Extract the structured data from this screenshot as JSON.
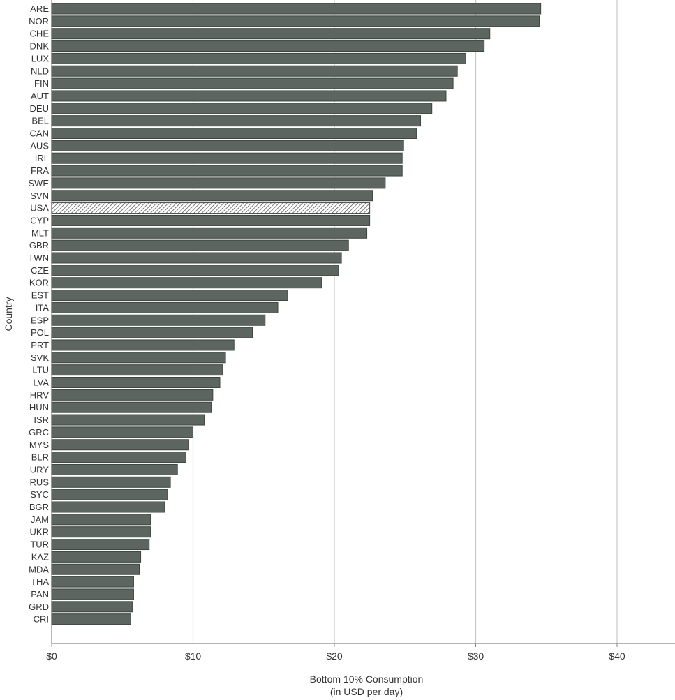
{
  "colors": {
    "bar": "#5c655f",
    "bar_stroke": "#3f4541",
    "highlight_hatch": "#444444",
    "grid": "#c8c8c8",
    "axis": "#888888"
  },
  "chart_data": {
    "type": "bar",
    "orientation": "horizontal",
    "xlabel_line1": "Bottom 10% Consumption",
    "xlabel_line2": "(in USD per day)",
    "ylabel": "Country",
    "xlim": [
      0,
      44
    ],
    "xticks": [
      0,
      10,
      20,
      30,
      40
    ],
    "xtick_labels": [
      "$0",
      "$10",
      "$20",
      "$30",
      "$40"
    ],
    "grid": true,
    "highlight": "USA",
    "categories": [
      "ARE",
      "NOR",
      "CHE",
      "DNK",
      "LUX",
      "NLD",
      "FIN",
      "AUT",
      "DEU",
      "BEL",
      "CAN",
      "AUS",
      "IRL",
      "FRA",
      "SWE",
      "SVN",
      "USA",
      "CYP",
      "MLT",
      "GBR",
      "TWN",
      "CZE",
      "KOR",
      "EST",
      "ITA",
      "ESP",
      "POL",
      "PRT",
      "SVK",
      "LTU",
      "LVA",
      "HRV",
      "HUN",
      "ISR",
      "GRC",
      "MYS",
      "BLR",
      "URY",
      "RUS",
      "SYC",
      "BGR",
      "JAM",
      "UKR",
      "TUR",
      "KAZ",
      "MDA",
      "THA",
      "PAN",
      "GRD",
      "CRI"
    ],
    "values": [
      34.6,
      34.5,
      31.0,
      30.6,
      29.3,
      28.7,
      28.4,
      27.9,
      26.9,
      26.1,
      25.8,
      24.9,
      24.8,
      24.8,
      23.6,
      22.7,
      22.5,
      22.5,
      22.3,
      21.0,
      20.5,
      20.3,
      19.1,
      16.7,
      16.0,
      15.1,
      14.2,
      12.9,
      12.3,
      12.1,
      11.9,
      11.4,
      11.3,
      10.8,
      10.0,
      9.7,
      9.5,
      8.9,
      8.4,
      8.2,
      8.0,
      7.0,
      7.0,
      6.9,
      6.3,
      6.2,
      5.8,
      5.8,
      5.7,
      5.6
    ]
  }
}
